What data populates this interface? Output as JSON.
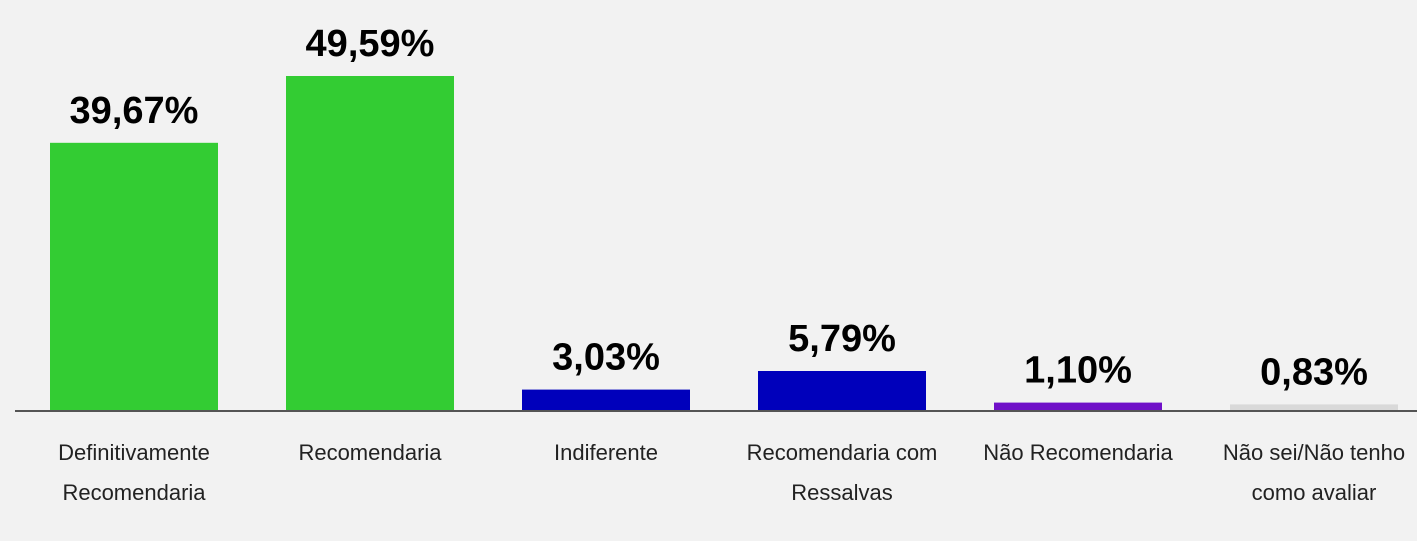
{
  "chart_data": {
    "type": "bar",
    "categories": [
      "Definitivamente Recomendaria",
      "Recomendaria",
      "Indiferente",
      "Recomendaria com Ressalvas",
      "Não Recomendaria",
      "Não sei/Não tenho como avaliar"
    ],
    "values": [
      39.67,
      49.59,
      3.03,
      5.79,
      1.1,
      0.83
    ],
    "value_labels": [
      "39,67%",
      "49,59%",
      "3,03%",
      "5,79%",
      "1,10%",
      "0,83%"
    ],
    "colors": [
      "#33cc33",
      "#33cc33",
      "#0000bb",
      "#0000bb",
      "#7010c8",
      "#d9d9d9"
    ]
  }
}
